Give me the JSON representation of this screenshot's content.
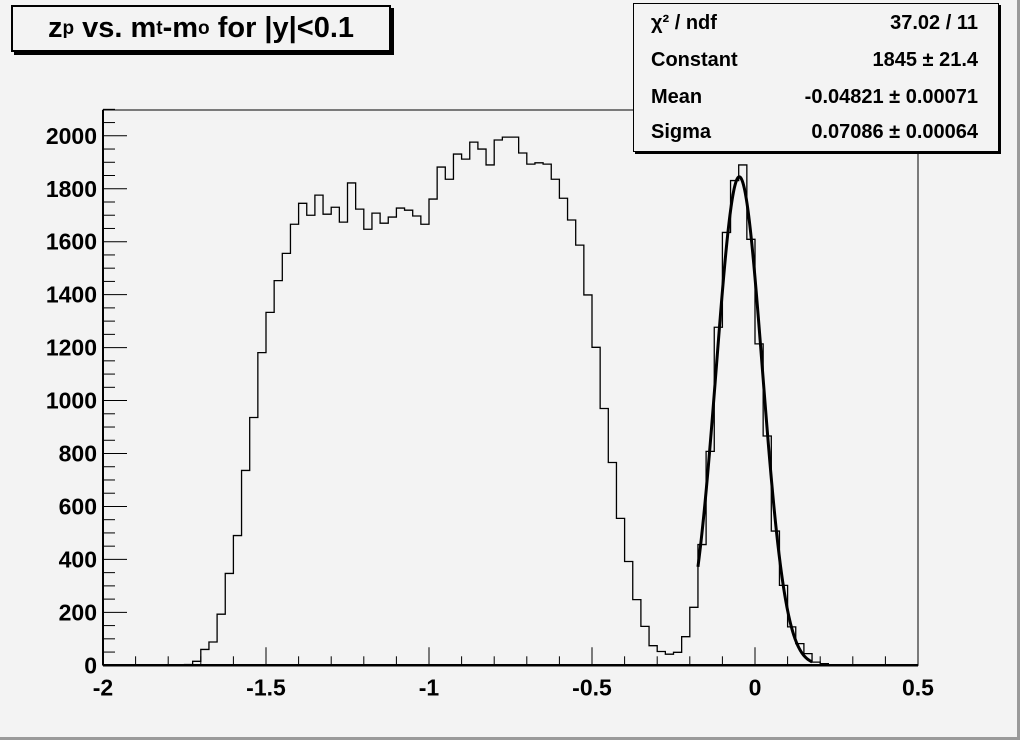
{
  "title": {
    "main": "z",
    "sub1": "p",
    "mid": " vs. m",
    "sub2": "t",
    "mid2": "-m",
    "sub3": "o",
    "tail": " for |y|<0.1"
  },
  "stats": {
    "rows": [
      {
        "label": "χ² / ndf",
        "value": "37.02 / 11"
      },
      {
        "label": "Constant",
        "value": "1845 ± 21.4"
      },
      {
        "label": "Mean",
        "value": "-0.04821 ± 0.00071"
      },
      {
        "label": "Sigma",
        "value": "0.07086 ± 0.00064"
      }
    ]
  },
  "chart_data": {
    "type": "histogram",
    "title": "z_p vs. m_t-m_o for |y|<0.1",
    "xlabel": "",
    "ylabel": "",
    "xlim": [
      -2,
      0.5
    ],
    "ylim": [
      0,
      2110
    ],
    "bin_width": 0.025,
    "x_ticks": [
      "-2",
      "-1.5",
      "-1",
      "-0.5",
      "0",
      "0.5"
    ],
    "y_ticks": [
      "0",
      "200",
      "400",
      "600",
      "800",
      "1000",
      "1200",
      "1400",
      "1600",
      "1800",
      "2000"
    ],
    "grid": false,
    "legend": "none",
    "values": [
      0,
      0,
      0,
      0,
      0,
      0,
      0,
      0,
      0,
      1,
      3,
      15,
      60,
      88,
      193,
      347,
      490,
      736,
      936,
      1181,
      1333,
      1453,
      1556,
      1666,
      1745,
      1700,
      1776,
      1704,
      1730,
      1674,
      1822,
      1723,
      1647,
      1708,
      1670,
      1693,
      1727,
      1719,
      1697,
      1666,
      1761,
      1882,
      1836,
      1931,
      1912,
      1976,
      1950,
      1890,
      1984,
      1995,
      1995,
      1935,
      1893,
      1898,
      1893,
      1836,
      1764,
      1682,
      1587,
      1399,
      1201,
      970,
      766,
      555,
      392,
      248,
      147,
      74,
      52,
      42,
      49,
      108,
      219,
      456,
      808,
      1277,
      1635,
      1831,
      1890,
      1609,
      1214,
      866,
      507,
      302,
      145,
      82,
      44,
      12,
      6,
      2,
      0,
      0,
      0,
      0,
      0,
      0,
      0,
      0,
      0,
      0
    ],
    "fit": {
      "function": "gaus",
      "constant": 1845,
      "mean": -0.04821,
      "sigma": 0.07086,
      "range": [
        -0.175,
        0.175
      ]
    },
    "colors": {
      "histogram": "#000000",
      "fit": "#000000",
      "background": "#f3f3f3"
    }
  }
}
